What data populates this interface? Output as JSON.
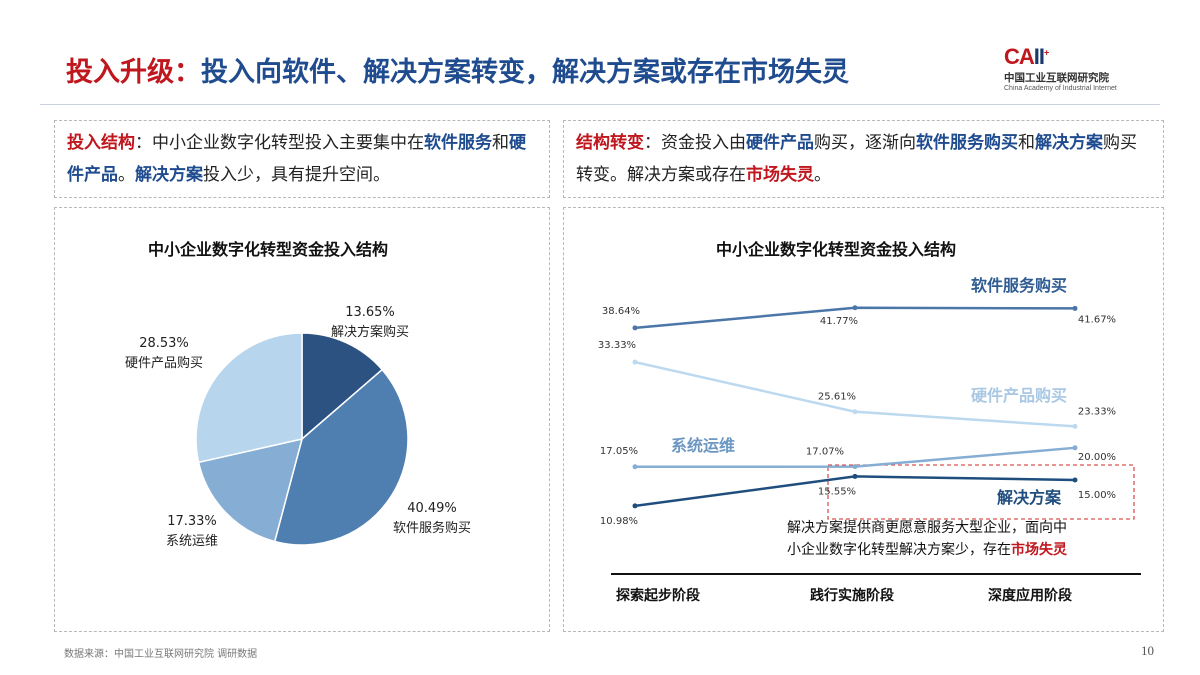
{
  "header": {
    "title_red": "投入升级：",
    "title_blue": "投入向软件、解决方案转变，解决方案或存在市场失灵",
    "logo_mark_c": "C",
    "logo_mark_a": "A",
    "logo_mark_ii": "II",
    "logo_cn": "中国工业互联网研究院",
    "logo_en": "China Academy of Industrial Internet"
  },
  "left_desc": {
    "label": "投入结构",
    "colon": "：",
    "t1": "中小企业数字化转型投入主要集中在",
    "b1": "软件服务",
    "t2": "和",
    "b2": "硬件产品",
    "t3": "。",
    "b3": "解决方案",
    "t4": "投入少，具有提升空间。"
  },
  "right_desc": {
    "label": "结构转变",
    "colon": "：",
    "t1": "资金投入由",
    "b1": "硬件产品",
    "t2": "购买，逐渐向",
    "b2": "软件服务购买",
    "t3": "和",
    "b3": "解决方案",
    "t4": "购买转变。解决方案或存在",
    "r1": "市场失灵",
    "t5": "。"
  },
  "chart_data": [
    {
      "type": "pie",
      "title": "中小企业数字化转型资金投入结构",
      "slices": [
        {
          "name": "解决方案购买",
          "value": 13.65,
          "label": "13.65%",
          "color": "#2c5282"
        },
        {
          "name": "软件服务购买",
          "value": 40.49,
          "label": "40.49%",
          "color": "#4f7fb0"
        },
        {
          "name": "系统运维",
          "value": 17.33,
          "label": "17.33%",
          "color": "#86add3"
        },
        {
          "name": "硬件产品购买",
          "value": 28.53,
          "label": "28.53%",
          "color": "#b7d5ec"
        }
      ]
    },
    {
      "type": "line",
      "title": "中小企业数字化转型资金投入结构",
      "categories": [
        "探索起步阶段",
        "践行实施阶段",
        "深度应用阶段"
      ],
      "ylim": [
        8,
        45
      ],
      "series": [
        {
          "name": "软件服务购买",
          "values": [
            38.64,
            41.77,
            41.67
          ],
          "labels": [
            "38.64%",
            "41.77%",
            "41.67%"
          ],
          "color": "#4a76a8"
        },
        {
          "name": "硬件产品购买",
          "values": [
            33.33,
            25.61,
            23.33
          ],
          "labels": [
            "33.33%",
            "25.61%",
            "23.33%"
          ],
          "color": "#bcd9ef"
        },
        {
          "name": "系统运维",
          "values": [
            17.05,
            17.07,
            20.0
          ],
          "labels": [
            "17.05%",
            "17.07%",
            "20.00%"
          ],
          "color": "#86add3"
        },
        {
          "name": "解决方案",
          "values": [
            10.98,
            15.55,
            15.0
          ],
          "labels": [
            "10.98%",
            "15.55%",
            "15.00%"
          ],
          "color": "#1f4e7e"
        }
      ],
      "note_l1": "解决方案提供商更愿意服务大型企业，面向中",
      "note_l2a": "小企业数字化转型解决方案少，存在",
      "note_l2b": "市场失灵"
    }
  ],
  "footer": {
    "source": "数据来源：中国工业互联网研究院 调研数据",
    "page": "10"
  }
}
